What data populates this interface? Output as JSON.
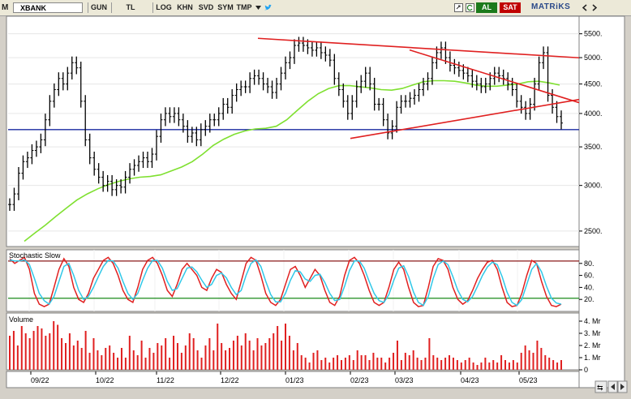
{
  "toolbar": {
    "symbol": "XBANK",
    "period": "GUN",
    "currency": "TL",
    "buttons": [
      "LOG",
      "KHN",
      "SVD",
      "SYM",
      "TMP"
    ],
    "buy_label": "AL",
    "sell_label": "SAT",
    "brand": "MATRiKS",
    "icons": [
      "twitter-icon",
      "export-icon",
      "refresh-icon",
      "settings-icon"
    ]
  },
  "colors": {
    "price_bars": "#000000",
    "moving_average": "#7fe030",
    "trend_lines": "#e02020",
    "support_line": "#1a2aa0",
    "stoch_k": "#e02020",
    "stoch_d": "#30c8e8",
    "stoch_upper": "#8b1a1a",
    "stoch_lower": "#1a8a1a",
    "volume": "#e02020"
  },
  "chart_data": [
    {
      "type": "ohlc",
      "panel": "price",
      "scale": "log",
      "y_ticks": [
        "5500.",
        "5000.",
        "4500.",
        "4000.",
        "3500.",
        "3000.",
        "2500."
      ],
      "ylim": [
        2350,
        5900
      ],
      "x_ticks": [
        "09/22",
        "10/22",
        "11/22",
        "12/22",
        "01/23",
        "02/23",
        "03/23",
        "04/23",
        "05/23"
      ],
      "close_series": [
        2780,
        2900,
        3150,
        3300,
        3350,
        3450,
        3500,
        3600,
        3900,
        4200,
        4400,
        4600,
        4500,
        4700,
        4900,
        4800,
        4200,
        3600,
        3350,
        3200,
        3100,
        3000,
        3050,
        2950,
        3000,
        2980,
        3100,
        3200,
        3250,
        3300,
        3350,
        3300,
        3400,
        3650,
        3900,
        4000,
        3950,
        4000,
        3900,
        3800,
        3650,
        3700,
        3600,
        3750,
        3800,
        3900,
        3900,
        4000,
        4150,
        4100,
        4300,
        4400,
        4450,
        4450,
        4600,
        4650,
        4600,
        4500,
        4450,
        4350,
        4500,
        4700,
        4900,
        5000,
        5250,
        5300,
        5250,
        5200,
        5150,
        5200,
        5100,
        5050,
        4950,
        4600,
        4400,
        4200,
        4000,
        4200,
        4450,
        4550,
        4700,
        4500,
        4150,
        4150,
        3900,
        3700,
        3800,
        4100,
        4200,
        4200,
        4250,
        4300,
        4400,
        4500,
        4600,
        4900,
        5100,
        5200,
        5000,
        4850,
        4800,
        4750,
        4700,
        4650,
        4550,
        4500,
        4450,
        4500,
        4600,
        4700,
        4650,
        4600,
        4500,
        4400,
        4200,
        4100,
        4000,
        4150,
        4500,
        4900,
        5100,
        4300,
        4100,
        3950,
        3850
      ],
      "moving_average_series": [
        2400,
        2480,
        2560,
        2650,
        2740,
        2830,
        2900,
        2960,
        3010,
        3050,
        3080,
        3100,
        3110,
        3130,
        3180,
        3230,
        3300,
        3400,
        3520,
        3610,
        3680,
        3730,
        3760,
        3770,
        3800,
        3900,
        4050,
        4200,
        4330,
        4420,
        4470,
        4470,
        4450,
        4430,
        4400,
        4390,
        4420,
        4480,
        4540,
        4560,
        4560,
        4550,
        4520,
        4480,
        4460,
        4460,
        4480,
        4500,
        4540,
        4550,
        4520,
        4480
      ],
      "resistance_line": {
        "start": [
          "12/22",
          5450
        ],
        "end": [
          "05/23",
          5070
        ]
      },
      "descending_line": {
        "start": [
          "03/23",
          5250
        ],
        "end": [
          "05/23",
          4500
        ]
      },
      "support_trend": {
        "start": [
          "02/23",
          3620
        ],
        "end": [
          "05/23",
          4060
        ]
      },
      "horizontal_support": 3750
    },
    {
      "type": "line",
      "panel": "oscillator",
      "title": "Stochastic Slow",
      "y_ticks": [
        "80.",
        "60.",
        "40.",
        "20."
      ],
      "ylim": [
        0,
        100
      ],
      "upper_band": 84,
      "lower_band": 22,
      "series": [
        {
          "values": [
            88,
            80,
            85,
            90,
            70,
            30,
            12,
            8,
            12,
            40,
            70,
            88,
            75,
            40,
            20,
            15,
            30,
            55,
            70,
            85,
            90,
            80,
            60,
            35,
            20,
            15,
            40,
            70,
            85,
            90,
            80,
            60,
            35,
            25,
            45,
            70,
            80,
            70,
            60,
            40,
            35,
            55,
            70,
            65,
            45,
            30,
            20,
            50,
            80,
            90,
            85,
            60,
            30,
            15,
            10,
            20,
            45,
            70,
            75,
            60,
            40,
            55,
            70,
            60,
            35,
            15,
            10,
            25,
            60,
            85,
            90,
            80,
            60,
            35,
            15,
            10,
            15,
            40,
            70,
            82,
            70,
            40,
            15,
            8,
            10,
            40,
            75,
            88,
            85,
            70,
            40,
            20,
            12,
            18,
            35,
            55,
            70,
            82,
            85,
            70,
            40,
            15,
            8,
            10,
            30,
            60,
            85,
            80,
            50,
            25,
            10,
            8,
            12
          ]
        },
        {
          "values": [
            86,
            84,
            84,
            86,
            78,
            55,
            30,
            18,
            12,
            25,
            50,
            75,
            80,
            60,
            35,
            20,
            25,
            40,
            58,
            75,
            85,
            84,
            72,
            50,
            30,
            20,
            30,
            52,
            72,
            85,
            85,
            72,
            50,
            35,
            38,
            55,
            72,
            74,
            66,
            52,
            40,
            45,
            60,
            64,
            56,
            40,
            28,
            35,
            60,
            80,
            86,
            75,
            50,
            28,
            16,
            16,
            30,
            52,
            68,
            66,
            54,
            50,
            60,
            62,
            48,
            30,
            18,
            20,
            42,
            68,
            84,
            84,
            72,
            50,
            30,
            18,
            15,
            28,
            52,
            72,
            76,
            58,
            32,
            15,
            10,
            25,
            55,
            78,
            84,
            78,
            58,
            35,
            20,
            16,
            25,
            42,
            60,
            74,
            82,
            78,
            58,
            32,
            15,
            10,
            20,
            45,
            70,
            80,
            66,
            42,
            22,
            14,
            12
          ]
        }
      ]
    },
    {
      "type": "bar",
      "panel": "volume",
      "title": "Volume",
      "y_ticks": [
        "4. Mr",
        "3. Mr",
        "2. Mr",
        "1. Mr",
        "0"
      ],
      "ylim": [
        0,
        4.4
      ],
      "values": [
        2.8,
        3.2,
        2.0,
        3.6,
        3.0,
        2.6,
        3.2,
        3.6,
        3.4,
        2.8,
        3.0,
        4.0,
        3.7,
        2.6,
        2.2,
        3.0,
        2.0,
        2.4,
        1.8,
        3.2,
        1.4,
        2.6,
        1.6,
        1.2,
        1.8,
        2.0,
        1.4,
        1.0,
        1.8,
        1.0,
        2.8,
        1.6,
        1.2,
        2.4,
        1.0,
        1.8,
        1.4,
        2.2,
        2.0,
        2.6,
        1.0,
        2.8,
        2.2,
        1.4,
        2.0,
        3.0,
        2.6,
        1.6,
        1.0,
        2.0,
        2.6,
        1.6,
        3.8,
        2.2,
        1.6,
        1.8,
        2.4,
        2.8,
        2.0,
        3.0,
        2.4,
        1.6,
        2.6,
        2.0,
        2.2,
        2.6,
        3.0,
        3.6,
        2.4,
        3.8,
        2.8,
        1.6,
        2.2,
        1.2,
        1.0,
        0.6,
        1.4,
        1.6,
        0.8,
        1.0,
        0.6,
        1.0,
        1.2,
        0.8,
        1.0,
        1.2,
        0.8,
        1.6,
        1.2,
        1.2,
        0.8,
        1.4,
        1.0,
        1.0,
        0.6,
        1.0,
        1.4,
        2.4,
        0.8,
        1.4,
        1.2,
        1.6,
        1.0,
        0.8,
        1.0,
        2.6,
        1.2,
        1.0,
        0.8,
        1.0,
        1.2,
        1.0,
        0.8,
        0.6,
        0.8,
        1.0,
        0.6,
        0.4,
        0.6,
        1.0,
        0.6,
        0.8,
        0.6,
        1.2,
        0.8,
        0.6,
        0.8,
        0.6,
        1.4,
        2.0,
        1.6,
        1.4,
        2.4,
        1.8,
        1.2,
        1.0,
        0.8,
        0.6,
        0.8
      ]
    }
  ]
}
